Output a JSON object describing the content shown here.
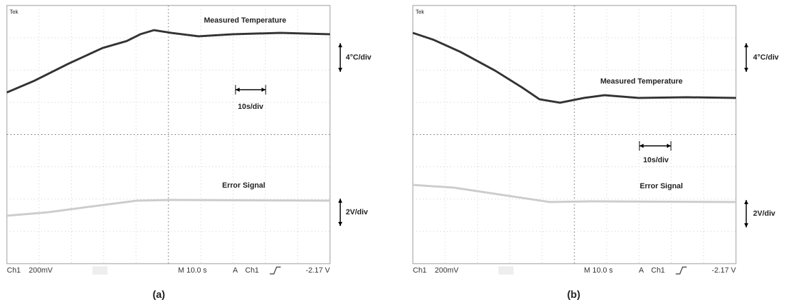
{
  "panels": [
    {
      "tag": "Tek",
      "trace_1_label": "Measured Temperature",
      "trace_1_scale": "4°C/div",
      "time_scale": "10s/div",
      "trace_2_label": "Error Signal",
      "trace_2_scale": "2V/div",
      "status": {
        "channel": "Ch1",
        "volts": "200mV",
        "timebase": "M 10.0 s",
        "mode": "A",
        "trigger_source": "Ch1",
        "trigger_level": "-2.17 V"
      },
      "caption": "(a)"
    },
    {
      "tag": "Tek",
      "trace_1_label": "Measured Temperature",
      "trace_1_scale": "4°C/div",
      "time_scale": "10s/div",
      "trace_2_label": "Error Signal",
      "trace_2_scale": "2V/div",
      "status": {
        "channel": "Ch1",
        "volts": "200mV",
        "timebase": "M 10.0 s",
        "mode": "A",
        "trigger_source": "Ch1",
        "trigger_level": "-2.17 V"
      },
      "caption": "(b)"
    }
  ]
}
